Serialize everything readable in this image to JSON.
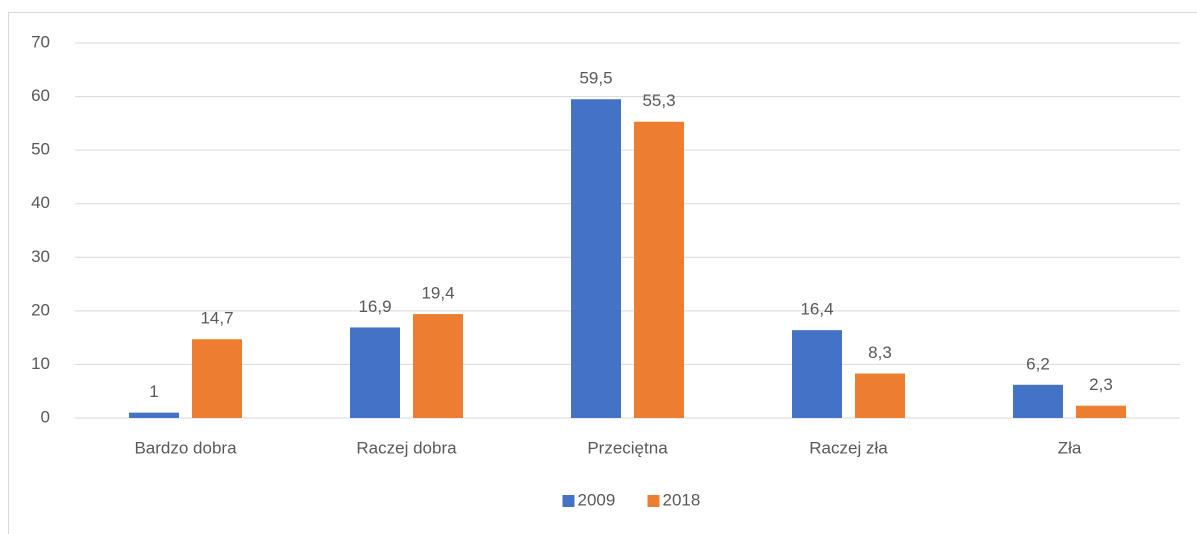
{
  "chart_data": {
    "type": "bar",
    "categories": [
      "Bardzo dobra",
      "Raczej dobra",
      "Przeciętna",
      "Raczej zła",
      "Zła"
    ],
    "series": [
      {
        "name": "2009",
        "color": "#4472c4",
        "values": [
          1,
          16.9,
          59.5,
          16.4,
          6.2
        ],
        "value_labels": [
          "1",
          "16,9",
          "59,5",
          "16,4",
          "6,2"
        ]
      },
      {
        "name": "2018",
        "color": "#ed7d31",
        "values": [
          14.7,
          19.4,
          55.3,
          8.3,
          2.3
        ],
        "value_labels": [
          "14,7",
          "19,4",
          "55,3",
          "8,3",
          "2,3"
        ]
      }
    ],
    "ylim": [
      0,
      70
    ],
    "yticks": [
      0,
      10,
      20,
      30,
      40,
      50,
      60,
      70
    ],
    "grid": true,
    "legend": "bottom"
  }
}
